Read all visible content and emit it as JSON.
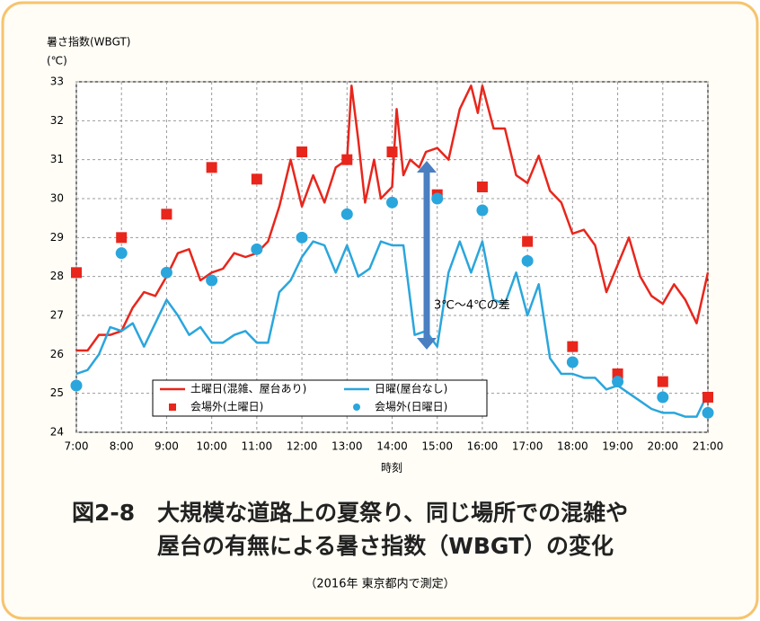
{
  "chart_data": {
    "type": "line",
    "title": "図2-8　大規模な道路上の夏祭り、同じ場所での混雑や",
    "title2": "屋台の有無による暑さ指数（WBGT）の変化",
    "subtitle": "（2016年 東京都内で測定）",
    "y_label": "暑さ指数(WBGT)",
    "y_unit": "(℃)",
    "x_label": "時刻",
    "annotation": "3℃～4℃の差",
    "xlim": [
      7,
      21
    ],
    "xticks": [
      {
        "value": 7,
        "label": "7:00"
      },
      {
        "value": 8,
        "label": "8:00"
      },
      {
        "value": 9,
        "label": "9:00"
      },
      {
        "value": 10,
        "label": "10:00"
      },
      {
        "value": 11,
        "label": "11:00"
      },
      {
        "value": 12,
        "label": "12:00"
      },
      {
        "value": 13,
        "label": "13:00"
      },
      {
        "value": 14,
        "label": "14:00"
      },
      {
        "value": 15,
        "label": "15:00"
      },
      {
        "value": 16,
        "label": "16:00"
      },
      {
        "value": 17,
        "label": "17:00"
      },
      {
        "value": 18,
        "label": "18:00"
      },
      {
        "value": 19,
        "label": "19:00"
      },
      {
        "value": 20,
        "label": "20:00"
      },
      {
        "value": 21,
        "label": "21:00"
      }
    ],
    "ylim": [
      24,
      33
    ],
    "yticks": [
      24,
      25,
      26,
      27,
      28,
      29,
      30,
      31,
      32,
      33
    ],
    "grid": true,
    "legend": "lower left",
    "series": [
      {
        "name": "土曜日(混雑、屋台あり)",
        "type": "line",
        "color": "#e8261c",
        "x": [
          7,
          7.25,
          7.5,
          7.75,
          8,
          8.25,
          8.5,
          8.75,
          9,
          9.25,
          9.5,
          9.75,
          10,
          10.25,
          10.5,
          10.75,
          11,
          11.25,
          11.5,
          11.75,
          12,
          12.25,
          12.5,
          12.75,
          13,
          13.1,
          13.25,
          13.4,
          13.6,
          13.75,
          14,
          14.1,
          14.25,
          14.4,
          14.6,
          14.75,
          15,
          15.25,
          15.5,
          15.75,
          15.9,
          16,
          16.25,
          16.5,
          16.75,
          17,
          17.25,
          17.5,
          17.75,
          18,
          18.25,
          18.5,
          18.75,
          19,
          19.25,
          19.5,
          19.75,
          20,
          20.25,
          20.5,
          20.75,
          21
        ],
        "values": [
          26.1,
          26.1,
          26.5,
          26.5,
          26.6,
          27.2,
          27.6,
          27.5,
          28.0,
          28.6,
          28.7,
          27.9,
          28.1,
          28.2,
          28.6,
          28.5,
          28.6,
          28.9,
          29.8,
          31.0,
          29.8,
          30.6,
          29.9,
          30.8,
          31.0,
          32.9,
          31.5,
          29.9,
          31.0,
          30.0,
          30.3,
          32.3,
          30.6,
          31.0,
          30.8,
          31.2,
          31.3,
          31.0,
          32.3,
          32.9,
          32.2,
          32.9,
          31.8,
          31.8,
          30.6,
          30.4,
          31.1,
          30.2,
          29.9,
          29.1,
          29.2,
          28.8,
          27.6,
          28.3,
          29.0,
          28.0,
          27.5,
          27.3,
          27.8,
          27.4,
          26.8,
          28.1
        ]
      },
      {
        "name": "日曜(屋台なし)",
        "type": "line",
        "color": "#2aa6dc",
        "x": [
          7,
          7.25,
          7.5,
          7.75,
          8,
          8.25,
          8.5,
          8.75,
          9,
          9.25,
          9.5,
          9.75,
          10,
          10.25,
          10.5,
          10.75,
          11,
          11.25,
          11.5,
          11.75,
          12,
          12.25,
          12.5,
          12.75,
          13,
          13.25,
          13.5,
          13.75,
          14,
          14.25,
          14.5,
          14.75,
          15,
          15.25,
          15.5,
          15.75,
          16,
          16.25,
          16.5,
          16.75,
          17,
          17.25,
          17.5,
          17.75,
          18,
          18.25,
          18.5,
          18.75,
          19,
          19.25,
          19.5,
          19.75,
          20,
          20.25,
          20.5,
          20.75,
          21
        ],
        "values": [
          25.5,
          25.6,
          26.0,
          26.7,
          26.6,
          26.8,
          26.2,
          26.8,
          27.4,
          27.0,
          26.5,
          26.7,
          26.3,
          26.3,
          26.5,
          26.6,
          26.3,
          26.3,
          27.6,
          27.9,
          28.5,
          28.9,
          28.8,
          28.1,
          28.8,
          28.0,
          28.2,
          28.9,
          28.8,
          28.8,
          26.5,
          26.6,
          26.2,
          28.1,
          28.9,
          28.1,
          28.9,
          27.4,
          27.3,
          28.1,
          27.0,
          27.8,
          25.9,
          25.5,
          25.5,
          25.4,
          25.4,
          25.1,
          25.2,
          25.0,
          24.8,
          24.6,
          24.5,
          24.5,
          24.4,
          24.4,
          25.0
        ]
      },
      {
        "name": "会場外(土曜日)",
        "type": "scatter",
        "marker": "square",
        "color": "#e8261c",
        "x": [
          7,
          8,
          9,
          10,
          11,
          12,
          13,
          14,
          15,
          16,
          17,
          18,
          19,
          20,
          21
        ],
        "values": [
          28.1,
          29.0,
          29.6,
          30.8,
          30.5,
          31.2,
          31.0,
          31.2,
          30.1,
          30.3,
          28.9,
          26.2,
          25.5,
          25.3,
          24.9
        ]
      },
      {
        "name": "会場外(日曜日)",
        "type": "scatter",
        "marker": "circle",
        "color": "#2aa6dc",
        "x": [
          7,
          8,
          9,
          10,
          11,
          12,
          13,
          14,
          15,
          16,
          17,
          18,
          19,
          20,
          21
        ],
        "values": [
          25.2,
          28.6,
          28.1,
          27.9,
          28.7,
          29.0,
          29.6,
          29.9,
          30.0,
          29.7,
          28.4,
          25.8,
          25.3,
          24.9,
          24.5
        ]
      }
    ]
  }
}
